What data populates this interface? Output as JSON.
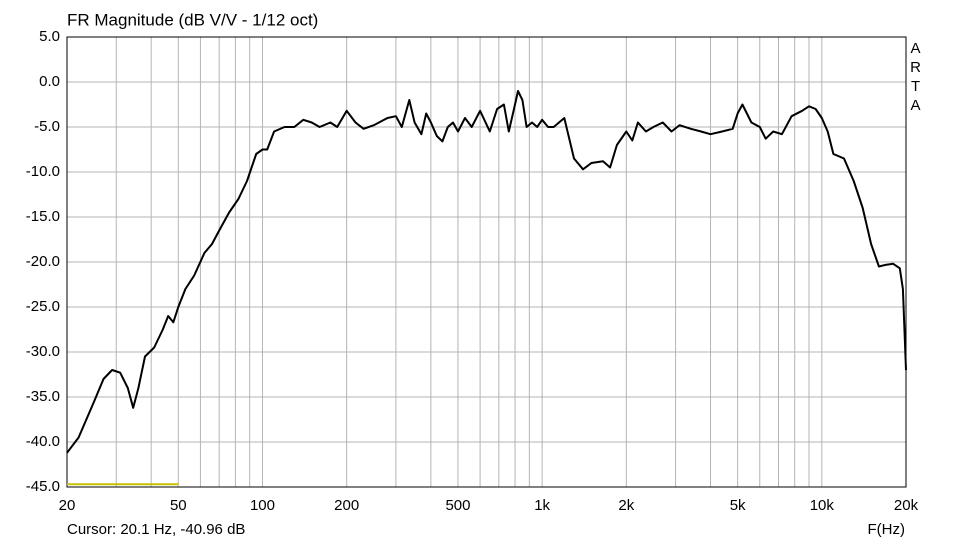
{
  "chart_data": {
    "type": "line",
    "title": "FR Magnitude (dB V/V - 1/12 oct)",
    "side_label": "ARTA",
    "xlabel": "F(Hz)",
    "cursor_text": "Cursor: 20.1 Hz, -40.96 dB",
    "xscale": "log",
    "grid": true,
    "xlim": [
      20,
      20000
    ],
    "ylim": [
      -45,
      5
    ],
    "xticks": [
      20,
      50,
      100,
      200,
      500,
      {
        "value": 1000,
        "label": "1k"
      },
      {
        "value": 2000,
        "label": "2k"
      },
      {
        "value": 5000,
        "label": "5k"
      },
      {
        "value": 10000,
        "label": "10k"
      },
      {
        "value": 20000,
        "label": "20k"
      }
    ],
    "x_minor_grid": [
      30,
      40,
      60,
      70,
      80,
      90,
      300,
      400,
      600,
      700,
      800,
      900,
      3000,
      4000,
      6000,
      7000,
      8000,
      9000
    ],
    "yticks": [
      {
        "value": 5,
        "label": "5.0"
      },
      {
        "value": 0,
        "label": "0.0"
      },
      {
        "value": -5,
        "label": "-5.0"
      },
      {
        "value": -10,
        "label": "-10.0"
      },
      {
        "value": -15,
        "label": "-15.0"
      },
      {
        "value": -20,
        "label": "-20.0"
      },
      {
        "value": -25,
        "label": "-25.0"
      },
      {
        "value": -30,
        "label": "-30.0"
      },
      {
        "value": -35,
        "label": "-35.0"
      },
      {
        "value": -40,
        "label": "-40.0"
      },
      {
        "value": -45,
        "label": "-45.0"
      }
    ],
    "band": {
      "color": "#c8c000",
      "x": [
        20,
        50
      ],
      "values": [
        -44.7,
        -44.7
      ]
    },
    "series": [
      {
        "color": "#000000",
        "x": [
          20,
          22,
          25,
          27,
          29,
          31,
          33,
          34.5,
          36,
          38,
          41,
          44,
          46,
          48,
          50,
          53,
          57,
          62,
          66,
          70,
          76,
          82,
          88,
          95,
          100,
          104,
          110,
          120,
          130,
          140,
          150,
          160,
          175,
          185,
          200,
          215,
          230,
          250,
          280,
          300,
          315,
          335,
          350,
          370,
          385,
          400,
          420,
          440,
          460,
          480,
          500,
          530,
          560,
          600,
          650,
          690,
          730,
          760,
          800,
          820,
          850,
          880,
          920,
          960,
          1000,
          1050,
          1100,
          1200,
          1300,
          1400,
          1500,
          1650,
          1750,
          1850,
          2000,
          2100,
          2200,
          2350,
          2500,
          2700,
          2900,
          3100,
          3400,
          3700,
          4000,
          4400,
          4800,
          5000,
          5200,
          5600,
          6000,
          6300,
          6700,
          7200,
          7800,
          8500,
          9000,
          9500,
          10000,
          10500,
          11000,
          12000,
          13000,
          14000,
          15000,
          16000,
          17000,
          18000,
          19000,
          19500,
          20000
        ],
        "values": [
          -41.2,
          -39.5,
          -35.5,
          -33,
          -32,
          -32.3,
          -34,
          -36.2,
          -34,
          -30.5,
          -29.5,
          -27.5,
          -26,
          -26.7,
          -25,
          -23,
          -21.5,
          -19,
          -18,
          -16.5,
          -14.5,
          -13,
          -11,
          -8,
          -7.5,
          -7.5,
          -5.5,
          -5,
          -5,
          -4.2,
          -4.5,
          -5,
          -4.5,
          -5,
          -3.2,
          -4.5,
          -5.2,
          -4.8,
          -4,
          -3.8,
          -5,
          -2,
          -4.5,
          -5.8,
          -3.5,
          -4.5,
          -6,
          -6.6,
          -5,
          -4.5,
          -5.5,
          -4,
          -5,
          -3.2,
          -5.5,
          -3,
          -2.5,
          -5.5,
          -2.5,
          -1,
          -2,
          -5,
          -4.5,
          -5,
          -4.2,
          -5,
          -5,
          -4,
          -8.5,
          -9.7,
          -9,
          -8.8,
          -9.5,
          -7,
          -5.5,
          -6.5,
          -4.5,
          -5.5,
          -5,
          -4.5,
          -5.5,
          -4.8,
          -5.2,
          -5.5,
          -5.8,
          -5.5,
          -5.2,
          -3.5,
          -2.5,
          -4.5,
          -5,
          -6.3,
          -5.5,
          -5.8,
          -3.8,
          -3.2,
          -2.7,
          -3,
          -4,
          -5.5,
          -8,
          -8.5,
          -11,
          -14,
          -18,
          -20.5,
          -20.3,
          -20.2,
          -20.7,
          -23,
          -32
        ]
      }
    ]
  }
}
